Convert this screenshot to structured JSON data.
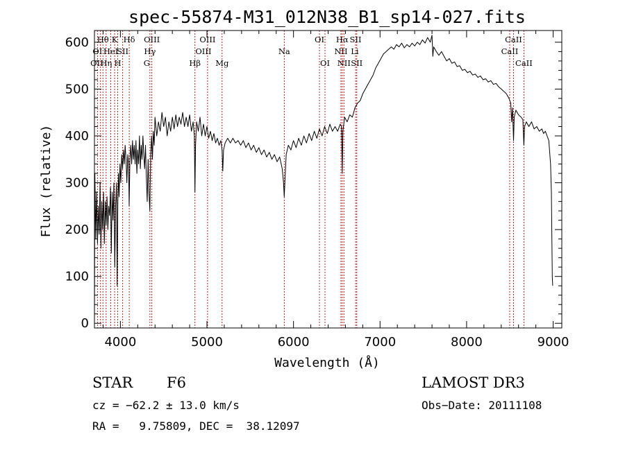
{
  "chart_data": {
    "type": "line",
    "title": "spec-55874-M31_012N38_B1_sp14-027.fits",
    "xlabel": "Wavelength (Å)",
    "ylabel": "Flux (relative)",
    "xlim": [
      3700,
      9100
    ],
    "ylim": [
      -10,
      625
    ],
    "xticks": [
      4000,
      5000,
      6000,
      7000,
      8000,
      9000
    ],
    "xtick_labels": [
      "4000",
      "5000",
      "6000",
      "7000",
      "8000",
      "9000"
    ],
    "yticks": [
      0,
      100,
      200,
      300,
      400,
      500,
      600
    ],
    "ytick_labels": [
      "0",
      "100",
      "200",
      "300",
      "400",
      "500",
      "600"
    ],
    "series": [
      {
        "name": "flux",
        "points": [
          [
            3700,
            5
          ],
          [
            3705,
            320
          ],
          [
            3715,
            180
          ],
          [
            3725,
            280
          ],
          [
            3735,
            170
          ],
          [
            3745,
            250
          ],
          [
            3755,
            190
          ],
          [
            3765,
            300
          ],
          [
            3775,
            160
          ],
          [
            3785,
            260
          ],
          [
            3795,
            200
          ],
          [
            3805,
            280
          ],
          [
            3815,
            170
          ],
          [
            3825,
            260
          ],
          [
            3835,
            210
          ],
          [
            3845,
            270
          ],
          [
            3855,
            200
          ],
          [
            3865,
            250
          ],
          [
            3875,
            230
          ],
          [
            3885,
            290
          ],
          [
            3895,
            150
          ],
          [
            3905,
            280
          ],
          [
            3915,
            220
          ],
          [
            3925,
            300
          ],
          [
            3935,
            120
          ],
          [
            3945,
            250
          ],
          [
            3955,
            300
          ],
          [
            3962,
            80
          ],
          [
            3970,
            260
          ],
          [
            3978,
            320
          ],
          [
            3985,
            270
          ],
          [
            3995,
            340
          ],
          [
            4005,
            300
          ],
          [
            4015,
            360
          ],
          [
            4025,
            330
          ],
          [
            4035,
            370
          ],
          [
            4045,
            340
          ],
          [
            4055,
            380
          ],
          [
            4065,
            350
          ],
          [
            4075,
            300
          ],
          [
            4085,
            360
          ],
          [
            4095,
            340
          ],
          [
            4101,
            250
          ],
          [
            4110,
            350
          ],
          [
            4120,
            380
          ],
          [
            4130,
            340
          ],
          [
            4140,
            390
          ],
          [
            4150,
            350
          ],
          [
            4160,
            380
          ],
          [
            4170,
            340
          ],
          [
            4180,
            390
          ],
          [
            4190,
            320
          ],
          [
            4200,
            370
          ],
          [
            4210,
            340
          ],
          [
            4220,
            400
          ],
          [
            4230,
            330
          ],
          [
            4240,
            380
          ],
          [
            4250,
            350
          ],
          [
            4260,
            400
          ],
          [
            4270,
            360
          ],
          [
            4280,
            330
          ],
          [
            4290,
            380
          ],
          [
            4300,
            310
          ],
          [
            4310,
            260
          ],
          [
            4320,
            350
          ],
          [
            4330,
            280
          ],
          [
            4340,
            240
          ],
          [
            4350,
            360
          ],
          [
            4360,
            400
          ],
          [
            4370,
            350
          ],
          [
            4380,
            410
          ],
          [
            4390,
            380
          ],
          [
            4400,
            440
          ],
          [
            4420,
            400
          ],
          [
            4440,
            430
          ],
          [
            4460,
            410
          ],
          [
            4480,
            450
          ],
          [
            4500,
            420
          ],
          [
            4520,
            440
          ],
          [
            4540,
            400
          ],
          [
            4560,
            430
          ],
          [
            4580,
            410
          ],
          [
            4600,
            440
          ],
          [
            4620,
            415
          ],
          [
            4640,
            445
          ],
          [
            4660,
            420
          ],
          [
            4680,
            440
          ],
          [
            4700,
            425
          ],
          [
            4720,
            450
          ],
          [
            4740,
            420
          ],
          [
            4760,
            440
          ],
          [
            4780,
            420
          ],
          [
            4800,
            445
          ],
          [
            4820,
            410
          ],
          [
            4840,
            430
          ],
          [
            4855,
            400
          ],
          [
            4861,
            280
          ],
          [
            4868,
            380
          ],
          [
            4880,
            430
          ],
          [
            4900,
            410
          ],
          [
            4920,
            440
          ],
          [
            4940,
            400
          ],
          [
            4960,
            425
          ],
          [
            4980,
            400
          ],
          [
            5000,
            420
          ],
          [
            5020,
            395
          ],
          [
            5040,
            410
          ],
          [
            5060,
            390
          ],
          [
            5080,
            405
          ],
          [
            5100,
            385
          ],
          [
            5120,
            395
          ],
          [
            5140,
            380
          ],
          [
            5160,
            390
          ],
          [
            5175,
            370
          ],
          [
            5183,
            325
          ],
          [
            5192,
            370
          ],
          [
            5210,
            385
          ],
          [
            5240,
            395
          ],
          [
            5270,
            385
          ],
          [
            5300,
            395
          ],
          [
            5330,
            385
          ],
          [
            5360,
            390
          ],
          [
            5390,
            380
          ],
          [
            5420,
            390
          ],
          [
            5450,
            375
          ],
          [
            5480,
            385
          ],
          [
            5510,
            370
          ],
          [
            5540,
            380
          ],
          [
            5570,
            365
          ],
          [
            5600,
            375
          ],
          [
            5630,
            360
          ],
          [
            5660,
            370
          ],
          [
            5690,
            355
          ],
          [
            5720,
            365
          ],
          [
            5750,
            350
          ],
          [
            5780,
            360
          ],
          [
            5810,
            345
          ],
          [
            5840,
            355
          ],
          [
            5870,
            330
          ],
          [
            5885,
            300
          ],
          [
            5893,
            270
          ],
          [
            5900,
            300
          ],
          [
            5915,
            360
          ],
          [
            5940,
            380
          ],
          [
            5970,
            370
          ],
          [
            6000,
            390
          ],
          [
            6030,
            375
          ],
          [
            6060,
            395
          ],
          [
            6090,
            380
          ],
          [
            6120,
            400
          ],
          [
            6150,
            385
          ],
          [
            6180,
            405
          ],
          [
            6210,
            390
          ],
          [
            6240,
            410
          ],
          [
            6270,
            395
          ],
          [
            6300,
            415
          ],
          [
            6330,
            400
          ],
          [
            6360,
            420
          ],
          [
            6390,
            405
          ],
          [
            6420,
            425
          ],
          [
            6450,
            410
          ],
          [
            6480,
            420
          ],
          [
            6510,
            410
          ],
          [
            6540,
            425
          ],
          [
            6555,
            420
          ],
          [
            6563,
            320
          ],
          [
            6571,
            410
          ],
          [
            6590,
            440
          ],
          [
            6620,
            430
          ],
          [
            6650,
            445
          ],
          [
            6680,
            440
          ],
          [
            6710,
            460
          ],
          [
            6740,
            470
          ],
          [
            6770,
            475
          ],
          [
            6800,
            490
          ],
          [
            6830,
            500
          ],
          [
            6860,
            510
          ],
          [
            6890,
            520
          ],
          [
            6920,
            530
          ],
          [
            6950,
            545
          ],
          [
            6980,
            555
          ],
          [
            7010,
            565
          ],
          [
            7040,
            575
          ],
          [
            7070,
            580
          ],
          [
            7100,
            585
          ],
          [
            7130,
            590
          ],
          [
            7160,
            585
          ],
          [
            7190,
            595
          ],
          [
            7220,
            590
          ],
          [
            7250,
            598
          ],
          [
            7280,
            588
          ],
          [
            7310,
            595
          ],
          [
            7340,
            590
          ],
          [
            7370,
            598
          ],
          [
            7400,
            592
          ],
          [
            7430,
            600
          ],
          [
            7460,
            595
          ],
          [
            7490,
            605
          ],
          [
            7520,
            598
          ],
          [
            7550,
            610
          ],
          [
            7580,
            600
          ],
          [
            7600,
            615
          ],
          [
            7610,
            570
          ],
          [
            7620,
            590
          ],
          [
            7650,
            580
          ],
          [
            7680,
            572
          ],
          [
            7710,
            580
          ],
          [
            7740,
            570
          ],
          [
            7770,
            560
          ],
          [
            7800,
            565
          ],
          [
            7830,
            555
          ],
          [
            7860,
            558
          ],
          [
            7890,
            548
          ],
          [
            7920,
            550
          ],
          [
            7950,
            540
          ],
          [
            7980,
            542
          ],
          [
            8010,
            535
          ],
          [
            8040,
            538
          ],
          [
            8070,
            530
          ],
          [
            8100,
            532
          ],
          [
            8130,
            525
          ],
          [
            8160,
            528
          ],
          [
            8190,
            520
          ],
          [
            8220,
            522
          ],
          [
            8250,
            515
          ],
          [
            8280,
            518
          ],
          [
            8310,
            510
          ],
          [
            8340,
            512
          ],
          [
            8370,
            505
          ],
          [
            8400,
            500
          ],
          [
            8430,
            495
          ],
          [
            8460,
            490
          ],
          [
            8490,
            480
          ],
          [
            8510,
            470
          ],
          [
            8520,
            430
          ],
          [
            8530,
            460
          ],
          [
            8542,
            390
          ],
          [
            8550,
            440
          ],
          [
            8570,
            455
          ],
          [
            8600,
            445
          ],
          [
            8630,
            440
          ],
          [
            8650,
            435
          ],
          [
            8662,
            380
          ],
          [
            8670,
            420
          ],
          [
            8690,
            430
          ],
          [
            8720,
            420
          ],
          [
            8750,
            430
          ],
          [
            8780,
            415
          ],
          [
            8810,
            420
          ],
          [
            8840,
            410
          ],
          [
            8870,
            415
          ],
          [
            8890,
            405
          ],
          [
            8910,
            410
          ],
          [
            8930,
            400
          ],
          [
            8950,
            390
          ],
          [
            8970,
            340
          ],
          [
            8980,
            280
          ],
          [
            8990,
            100
          ],
          [
            8995,
            80
          ]
        ]
      }
    ],
    "line_positions": [
      3735,
      3770,
      3798,
      3835,
      3889,
      3933,
      3969,
      4026,
      4102,
      4341,
      4363,
      4861,
      5007,
      5175,
      5893,
      6300,
      6364,
      6548,
      6563,
      6583,
      6717,
      6731,
      8498,
      8542,
      8662
    ],
    "line_labels": [
      {
        "text": "Hθ",
        "x": 3798,
        "row": 0
      },
      {
        "text": "K",
        "x": 3933,
        "row": 0
      },
      {
        "text": "Hδ",
        "x": 4102,
        "row": 0
      },
      {
        "text": "OIII",
        "x": 4363,
        "row": 0
      },
      {
        "text": "OIII",
        "x": 5007,
        "row": 0
      },
      {
        "text": "OI",
        "x": 6300,
        "row": 0
      },
      {
        "text": "Hα",
        "x": 6563,
        "row": 0
      },
      {
        "text": "SII",
        "x": 6717,
        "row": 0
      },
      {
        "text": "CaII",
        "x": 8542,
        "row": 0
      },
      {
        "text": "OI",
        "x": 3735,
        "row": 1
      },
      {
        "text": "HeI",
        "x": 3889,
        "row": 1
      },
      {
        "text": "SII",
        "x": 4026,
        "row": 1
      },
      {
        "text": "Hγ",
        "x": 4341,
        "row": 1
      },
      {
        "text": "OIII",
        "x": 4959,
        "row": 1
      },
      {
        "text": "Na",
        "x": 5893,
        "row": 1
      },
      {
        "text": "NII",
        "x": 6548,
        "row": 1
      },
      {
        "text": "Li",
        "x": 6708,
        "row": 1
      },
      {
        "text": "CaII",
        "x": 8498,
        "row": 1
      },
      {
        "text": "OII",
        "x": 3727,
        "row": 2
      },
      {
        "text": "Hη",
        "x": 3835,
        "row": 2
      },
      {
        "text": "H",
        "x": 3969,
        "row": 2
      },
      {
        "text": "G",
        "x": 4305,
        "row": 2
      },
      {
        "text": "Hβ",
        "x": 4861,
        "row": 2
      },
      {
        "text": "Mg",
        "x": 5175,
        "row": 2
      },
      {
        "text": "OI",
        "x": 6364,
        "row": 2
      },
      {
        "text": "NII",
        "x": 6583,
        "row": 2
      },
      {
        "text": "SII",
        "x": 6731,
        "row": 2
      },
      {
        "text": "CaII",
        "x": 8662,
        "row": 2
      }
    ],
    "colors": {
      "spectrum": "#000000",
      "lines": "#c00000",
      "axes": "#000000"
    }
  },
  "info": {
    "class": "STAR",
    "subclass": "F6",
    "survey": "LAMOST DR3",
    "cz": "cz = −62.2 ± 13.0 km/s",
    "obs_date": "Obs−Date: 20111108",
    "coords": "RA =   9.75809, DEC =  38.12097"
  }
}
